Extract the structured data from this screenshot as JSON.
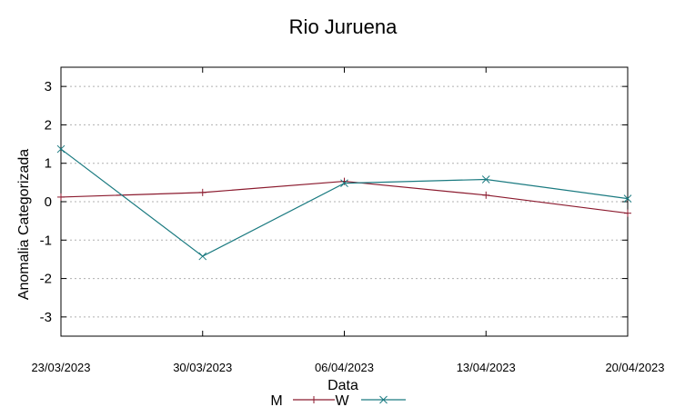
{
  "chart_data": {
    "type": "line",
    "title": "Rio Juruena",
    "xlabel": "Data",
    "ylabel": "Anomalia Categorizada",
    "categories": [
      "23/03/2023",
      "30/03/2023",
      "06/04/2023",
      "13/04/2023",
      "20/04/2023"
    ],
    "yticks": [
      "3",
      "2",
      "1",
      "0",
      "-1",
      "-2",
      "-3"
    ],
    "ylim": [
      -3.5,
      3.5
    ],
    "grid": true,
    "legend_position": "bottom",
    "series": [
      {
        "name": "M",
        "color": "#8b1a2e",
        "marker": "plus",
        "values": [
          0.12,
          0.24,
          0.53,
          0.17,
          -0.3
        ]
      },
      {
        "name": "W",
        "color": "#1a7a80",
        "marker": "cross",
        "values": [
          1.37,
          -1.42,
          0.48,
          0.58,
          0.08
        ]
      }
    ]
  }
}
